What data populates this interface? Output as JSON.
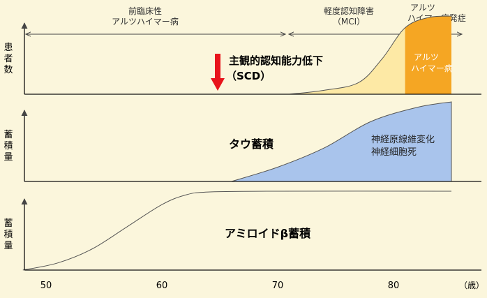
{
  "phases": {
    "preclinical": [
      "前臨床性",
      "アルツハイマー病"
    ],
    "mci": [
      "軽度認知障害",
      "（MCI）"
    ],
    "onset": [
      "アルツ",
      "ハイマー病発症"
    ]
  },
  "panels": {
    "patients": {
      "ylabel": [
        "患",
        "者",
        "数"
      ],
      "annotation": [
        "主観的認知能力低下",
        "（SCD）"
      ],
      "ad_label": [
        "アルツ",
        "ハイマー病"
      ]
    },
    "tau": {
      "ylabel": [
        "蓄",
        "積",
        "量"
      ],
      "title": "タウ蓄積",
      "annotation": [
        "神経原線維変化",
        "神経細胞死"
      ]
    },
    "amyloid": {
      "ylabel": [
        "蓄",
        "積",
        "量"
      ],
      "title": "アミロイドβ蓄積"
    }
  },
  "xaxis": {
    "ticks": [
      50,
      60,
      70,
      80
    ],
    "unit": "（歳）"
  },
  "colors": {
    "mci_fill": "#fde9a5",
    "ad_fill": "#f5a623",
    "tau_fill": "#a9c4ec",
    "arrow_red": "#e8141b",
    "background": "#fbf6dc"
  },
  "chart_data": [
    {
      "type": "area",
      "title": "",
      "xlabel": "（歳）",
      "ylabel": "患者数",
      "xlim": [
        48,
        86
      ],
      "ylim": [
        0,
        1
      ],
      "series": [
        {
          "name": "",
          "x": [
            71,
            74,
            77,
            79,
            81,
            83,
            85
          ],
          "values": [
            0,
            0.05,
            0.15,
            0.45,
            0.85,
            0.98,
            1.0
          ]
        }
      ]
    },
    {
      "type": "area",
      "title": "タウ蓄積",
      "xlabel": "（歳）",
      "ylabel": "蓄積量",
      "xlim": [
        48,
        86
      ],
      "ylim": [
        0,
        1
      ],
      "series": [
        {
          "name": "",
          "x": [
            66,
            70,
            74,
            78,
            82,
            85
          ],
          "values": [
            0,
            0.18,
            0.42,
            0.75,
            0.93,
            1.0
          ]
        }
      ]
    },
    {
      "type": "line",
      "title": "アミロイドβ蓄積",
      "xlabel": "（歳）",
      "ylabel": "蓄積量",
      "xlim": [
        48,
        86
      ],
      "ylim": [
        0,
        1
      ],
      "series": [
        {
          "name": "",
          "x": [
            48,
            51,
            54,
            57,
            60,
            62,
            64,
            70,
            85
          ],
          "values": [
            0,
            0.09,
            0.27,
            0.55,
            0.83,
            0.95,
            0.99,
            1.0,
            1.0
          ]
        }
      ]
    }
  ]
}
